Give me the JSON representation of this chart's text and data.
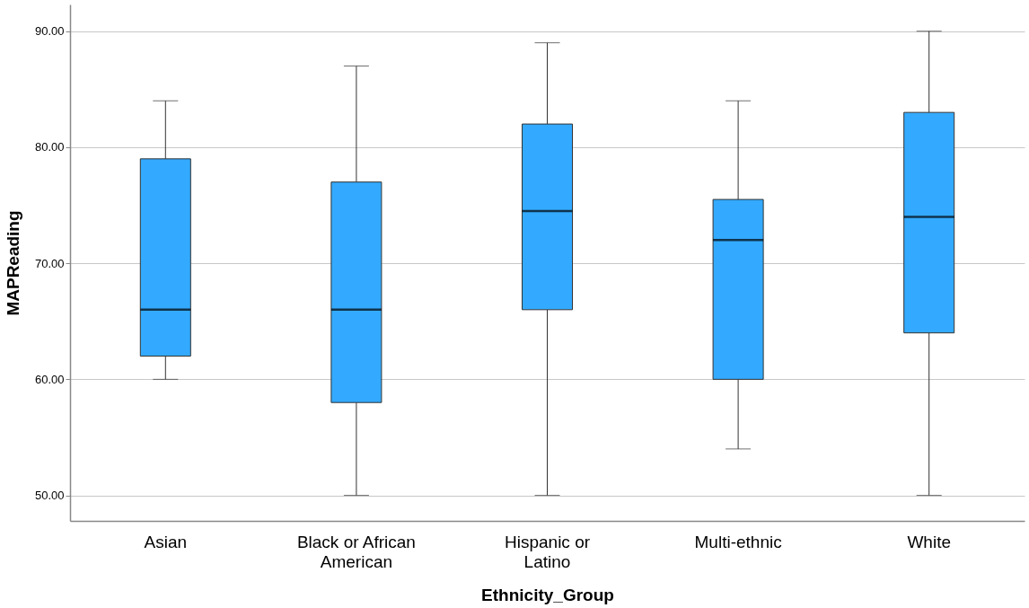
{
  "chart_data": {
    "type": "box",
    "xlabel": "Ethnicity_Group",
    "ylabel": "MAPReading",
    "categories": [
      "Asian",
      "Black or African American",
      "Hispanic or Latino",
      "Multi-ethnic",
      "White"
    ],
    "series": [
      {
        "color": "#33aaff",
        "boxes": [
          {
            "low": 60,
            "q1": 62,
            "median": 66,
            "q3": 79,
            "high": 84
          },
          {
            "low": 50,
            "q1": 58,
            "median": 66,
            "q3": 77,
            "high": 87
          },
          {
            "low": 50,
            "q1": 66,
            "median": 74.5,
            "q3": 82,
            "high": 89
          },
          {
            "low": 54,
            "q1": 60,
            "median": 72,
            "q3": 75.5,
            "high": 84
          },
          {
            "low": 50,
            "q1": 64,
            "median": 74,
            "q3": 83,
            "high": 90
          }
        ]
      }
    ],
    "ylim": [
      47.8,
      92.3
    ],
    "yticks": [
      {
        "value": 50,
        "label": "50.00"
      },
      {
        "value": 60,
        "label": "60.00"
      },
      {
        "value": 70,
        "label": "70.00"
      },
      {
        "value": 80,
        "label": "80.00"
      },
      {
        "value": 90,
        "label": "90.00"
      }
    ],
    "grid": "y"
  }
}
